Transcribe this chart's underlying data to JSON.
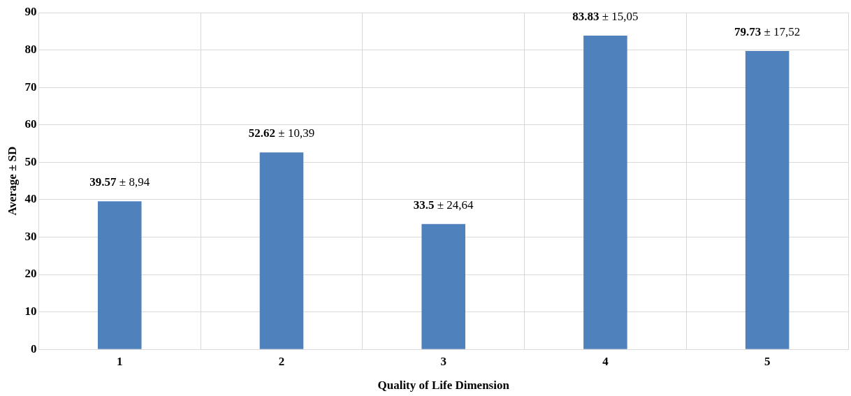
{
  "chart_data": {
    "type": "bar",
    "xlabel": "Quality of Life Dimension",
    "ylabel": "Average ± SD",
    "categories": [
      "1",
      "2",
      "3",
      "4",
      "5"
    ],
    "values": [
      39.57,
      52.62,
      33.5,
      83.83,
      79.73
    ],
    "value_labels": [
      "39.57 ± 8,94",
      "52.62 ± 10,39",
      "33.5 ± 24,64",
      "83.83 ± 15,05",
      "79.73 ± 17,52"
    ],
    "color": "#4f81bd",
    "ylim": [
      0,
      90
    ],
    "yticks": [
      0,
      10,
      20,
      30,
      40,
      50,
      60,
      70,
      80,
      90
    ],
    "grid": true,
    "legend": false
  }
}
